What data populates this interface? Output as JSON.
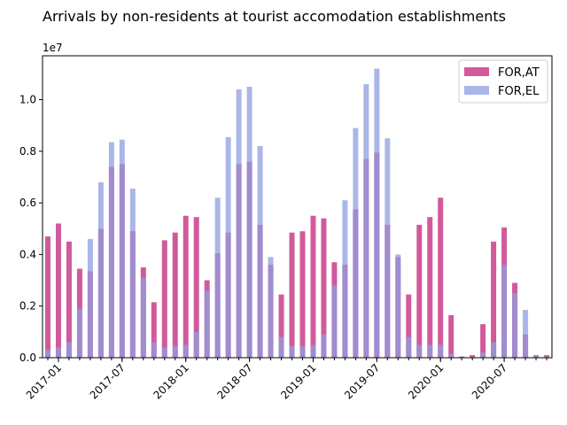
{
  "chart_data": {
    "type": "bar",
    "title": "Arrivals by non-residents at tourist accomodation establishments",
    "xlabel": "",
    "ylabel": "",
    "y_scale_note": "1e7",
    "ylim": [
      0,
      1.17
    ],
    "yticks": [
      "0.0",
      "0.2",
      "0.4",
      "0.6",
      "0.8",
      "1.0"
    ],
    "ytick_values": [
      0,
      0.2,
      0.4,
      0.6,
      0.8,
      1.0
    ],
    "xtick_labels": [
      "2017-01",
      "2017-07",
      "2018-01",
      "2018-07",
      "2019-01",
      "2019-07",
      "2020-01",
      "2020-07"
    ],
    "xtick_indices": [
      0,
      6,
      12,
      18,
      24,
      30,
      36,
      42
    ],
    "categories": [
      "2016-12",
      "2017-01",
      "2017-02",
      "2017-03",
      "2017-04",
      "2017-05",
      "2017-06",
      "2017-07",
      "2017-08",
      "2017-09",
      "2017-10",
      "2017-11",
      "2017-12",
      "2018-01",
      "2018-02",
      "2018-03",
      "2018-04",
      "2018-05",
      "2018-06",
      "2018-07",
      "2018-08",
      "2018-09",
      "2018-10",
      "2018-11",
      "2018-12",
      "2019-01",
      "2019-02",
      "2019-03",
      "2019-04",
      "2019-05",
      "2019-06",
      "2019-07",
      "2019-08",
      "2019-09",
      "2019-10",
      "2019-11",
      "2019-12",
      "2020-01",
      "2020-02",
      "2020-03",
      "2020-04",
      "2020-05",
      "2020-06",
      "2020-07",
      "2020-08",
      "2020-09",
      "2020-10",
      "2020-11"
    ],
    "legend_position": "top-right",
    "grid": false,
    "series": [
      {
        "name": "FOR,AT",
        "color": "#d15a9b",
        "values": [
          0.47,
          0.52,
          0.45,
          0.345,
          0.335,
          0.5,
          0.74,
          0.75,
          0.49,
          0.35,
          0.215,
          0.455,
          0.485,
          0.55,
          0.545,
          0.3,
          0.405,
          0.485,
          0.75,
          0.76,
          0.515,
          0.36,
          0.245,
          0.485,
          0.49,
          0.55,
          0.54,
          0.37,
          0.36,
          0.575,
          0.77,
          0.795,
          0.515,
          0.39,
          0.245,
          0.515,
          0.545,
          0.62,
          0.165,
          0.005,
          0.01,
          0.13,
          0.45,
          0.505,
          0.29,
          0.09,
          0.01,
          0.01
        ]
      },
      {
        "name": "FOR,EL",
        "color": "#8f9de0",
        "values": [
          0.03,
          0.04,
          0.06,
          0.19,
          0.46,
          0.68,
          0.835,
          0.845,
          0.655,
          0.31,
          0.06,
          0.04,
          0.045,
          0.05,
          0.1,
          0.26,
          0.62,
          0.855,
          1.04,
          1.05,
          0.82,
          0.39,
          0.08,
          0.045,
          0.045,
          0.05,
          0.09,
          0.28,
          0.61,
          0.89,
          1.06,
          1.12,
          0.85,
          0.4,
          0.08,
          0.05,
          0.05,
          0.05,
          0.015,
          0.005,
          0.003,
          0.02,
          0.06,
          0.36,
          0.25,
          0.185,
          0.01,
          0.005
        ]
      }
    ]
  }
}
